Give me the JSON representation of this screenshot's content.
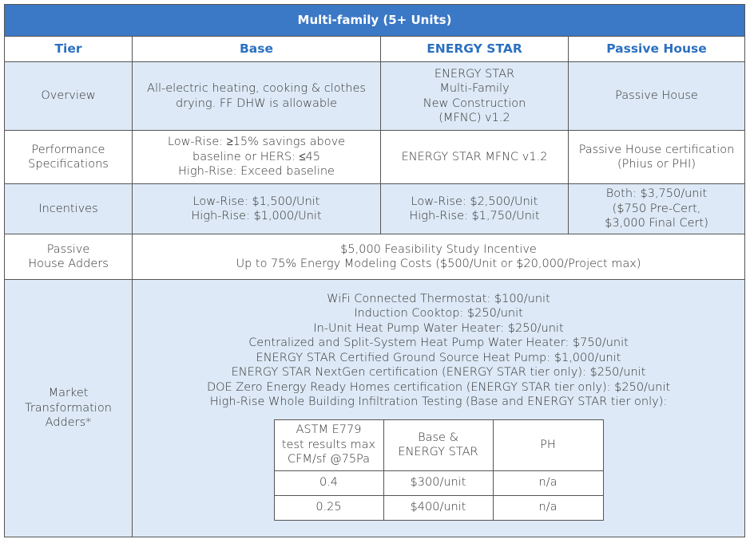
{
  "table": {
    "title": "Multi-family (5+ Units)",
    "header": [
      "Tier",
      "Base",
      "ENERGY STAR",
      "Passive House"
    ],
    "rows": [
      [
        [
          "Overview"
        ],
        [
          "All-electric heating, cooking & clothes",
          "drying. FF DHW is allowable"
        ],
        [
          "ENERGY STAR",
          "Multi-Family",
          "New Construction",
          "(MFNC) v1.2"
        ],
        [
          "Passive House"
        ]
      ],
      [
        [
          "Performance",
          "Specifications"
        ],
        [
          "Low-Rise: ≥15% savings above",
          "baseline or HERS: ≤45",
          "High-Rise: Exceed baseline"
        ],
        [
          "ENERGY STAR MFNC v1.2"
        ],
        [
          "Passive House certification",
          "(Phius or PHI)"
        ]
      ],
      [
        [
          "Incentives"
        ],
        [
          "Low-Rise: $1,500/Unit",
          "High-Rise: $1,000/Unit"
        ],
        [
          "Low-Rise: $2,500/Unit",
          "High-Rise: $1,750/Unit"
        ],
        [
          "Both: $3,750/unit",
          "($750 Pre-Cert,",
          "$3,000 Final Cert)"
        ]
      ],
      [
        [
          "Passive",
          "House Adders"
        ],
        [
          "$5,000 Feasibility Study Incentive",
          "Up to 75% Energy Modeling Costs ($500/Unit or $20,000/Project max)"
        ]
      ],
      [
        [
          "Market",
          "Transformation",
          "Adders*"
        ],
        [
          "WiFi Connected Thermostat: $100/unit",
          "Induction Cooktop: $250/unit",
          "In-Unit Heat Pump Water Heater: $250/unit",
          "Centralized and Split-System Heat Pump Water Heater: $750/unit",
          "ENERGY STAR Certified Ground Source Heat Pump: $1,000/unit",
          "ENERGY STAR NextGen certification (ENERGY STAR tier only): $250/unit",
          "DOE Zero Energy Ready Homes certification (ENERGY STAR tier only): $250/unit",
          "High-Rise Whole Building Infiltration Testing (Base and ENERGY STAR tier only):"
        ]
      ]
    ],
    "subtable": {
      "header": [
        [
          "ASTM E779",
          "test results max",
          "CFM/sf @75Pa"
        ],
        [
          "Base &",
          "ENERGY STAR"
        ],
        [
          "PH"
        ]
      ],
      "rows": [
        [
          "0.4",
          "$300/unit",
          "n/a"
        ],
        [
          "0.25",
          "$400/unit",
          "n/a"
        ]
      ]
    }
  }
}
